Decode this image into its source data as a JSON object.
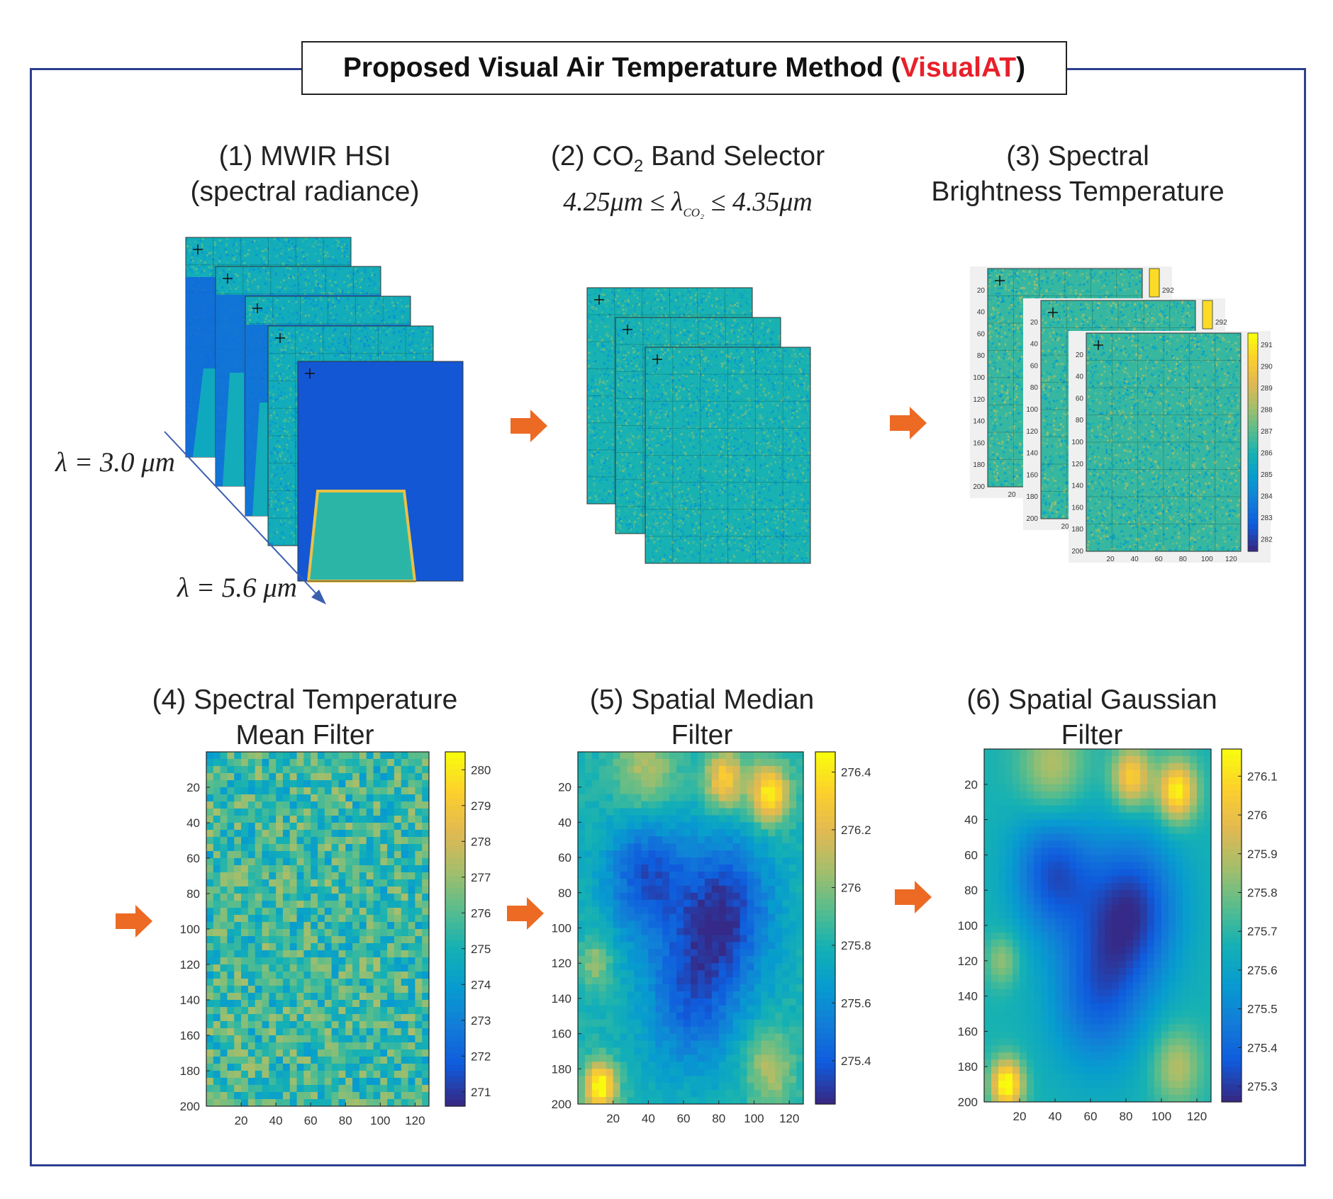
{
  "title": {
    "prefix": "Proposed Visual Air Temperature Method (",
    "accent": "VisualAT",
    "suffix": ")",
    "accent_color": "#e8202a"
  },
  "colors": {
    "frame": "#2d3f8f",
    "arrow": "#ec6a24",
    "wavelength_axis": "#3b5fb0"
  },
  "steps": [
    {
      "line1": "(1) MWIR HSI",
      "line2": "(spectral radiance)"
    },
    {
      "line1": "(2) CO",
      "sub": "2",
      "line1_rest": " Band Selector",
      "math_a": "4.25",
      "math_b": "μm ≤ λ",
      "math_sub": "CO₂",
      "math_c": " ≤ 4.35",
      "math_d": "μm"
    },
    {
      "line1": "(3) Spectral",
      "line2": "Brightness Temperature"
    },
    {
      "line1": "(4) Spectral Temperature",
      "line2": "Mean Filter"
    },
    {
      "line1": "(5) Spatial Median",
      "line2": "Filter"
    },
    {
      "line1": "(6) Spatial Gaussian",
      "line2": "Filter"
    }
  ],
  "wavelength_labels": {
    "start": "λ = 3.0 μm",
    "end": "λ = 5.6 μm"
  },
  "step3_colorbar_ticks": [
    "291",
    "290",
    "289",
    "288",
    "287",
    "286",
    "285",
    "284",
    "283",
    "282"
  ],
  "step3_colorbar_top_tick": "292",
  "step3_axes": {
    "y_ticks": [
      "20",
      "40",
      "60",
      "80",
      "100",
      "120",
      "140",
      "160",
      "180",
      "200"
    ],
    "x_ticks": [
      "20",
      "40",
      "60",
      "80",
      "100",
      "120"
    ]
  },
  "chart_data": [
    {
      "type": "heatmap",
      "title": "(4) Spectral Temperature Mean Filter",
      "x_ticks": [
        "20",
        "40",
        "60",
        "80",
        "100",
        "120"
      ],
      "y_ticks": [
        "20",
        "40",
        "60",
        "80",
        "100",
        "120",
        "140",
        "160",
        "180",
        "200"
      ],
      "xlim": [
        0,
        128
      ],
      "ylim": [
        0,
        200
      ],
      "colorbar_ticks": [
        "280",
        "279",
        "278",
        "277",
        "276",
        "275",
        "274",
        "273",
        "272",
        "271"
      ],
      "colorbar_range": [
        270.6,
        280.5
      ],
      "colormap": "parula"
    },
    {
      "type": "heatmap",
      "title": "(5) Spatial Median Filter",
      "x_ticks": [
        "20",
        "40",
        "60",
        "80",
        "100",
        "120"
      ],
      "y_ticks": [
        "20",
        "40",
        "60",
        "80",
        "100",
        "120",
        "140",
        "160",
        "180",
        "200"
      ],
      "xlim": [
        0,
        128
      ],
      "ylim": [
        0,
        200
      ],
      "colorbar_ticks": [
        "276.4",
        "276.2",
        "276",
        "275.8",
        "275.6",
        "275.4"
      ],
      "colorbar_range": [
        275.25,
        276.47
      ],
      "colormap": "parula"
    },
    {
      "type": "heatmap",
      "title": "(6) Spatial Gaussian Filter",
      "x_ticks": [
        "20",
        "40",
        "60",
        "80",
        "100",
        "120"
      ],
      "y_ticks": [
        "20",
        "40",
        "60",
        "80",
        "100",
        "120",
        "140",
        "160",
        "180",
        "200"
      ],
      "xlim": [
        0,
        128
      ],
      "ylim": [
        0,
        200
      ],
      "colorbar_ticks": [
        "276.1",
        "276",
        "275.9",
        "275.8",
        "275.7",
        "275.6",
        "275.5",
        "275.4",
        "275.3"
      ],
      "colorbar_range": [
        275.26,
        276.17
      ],
      "colormap": "parula"
    }
  ]
}
